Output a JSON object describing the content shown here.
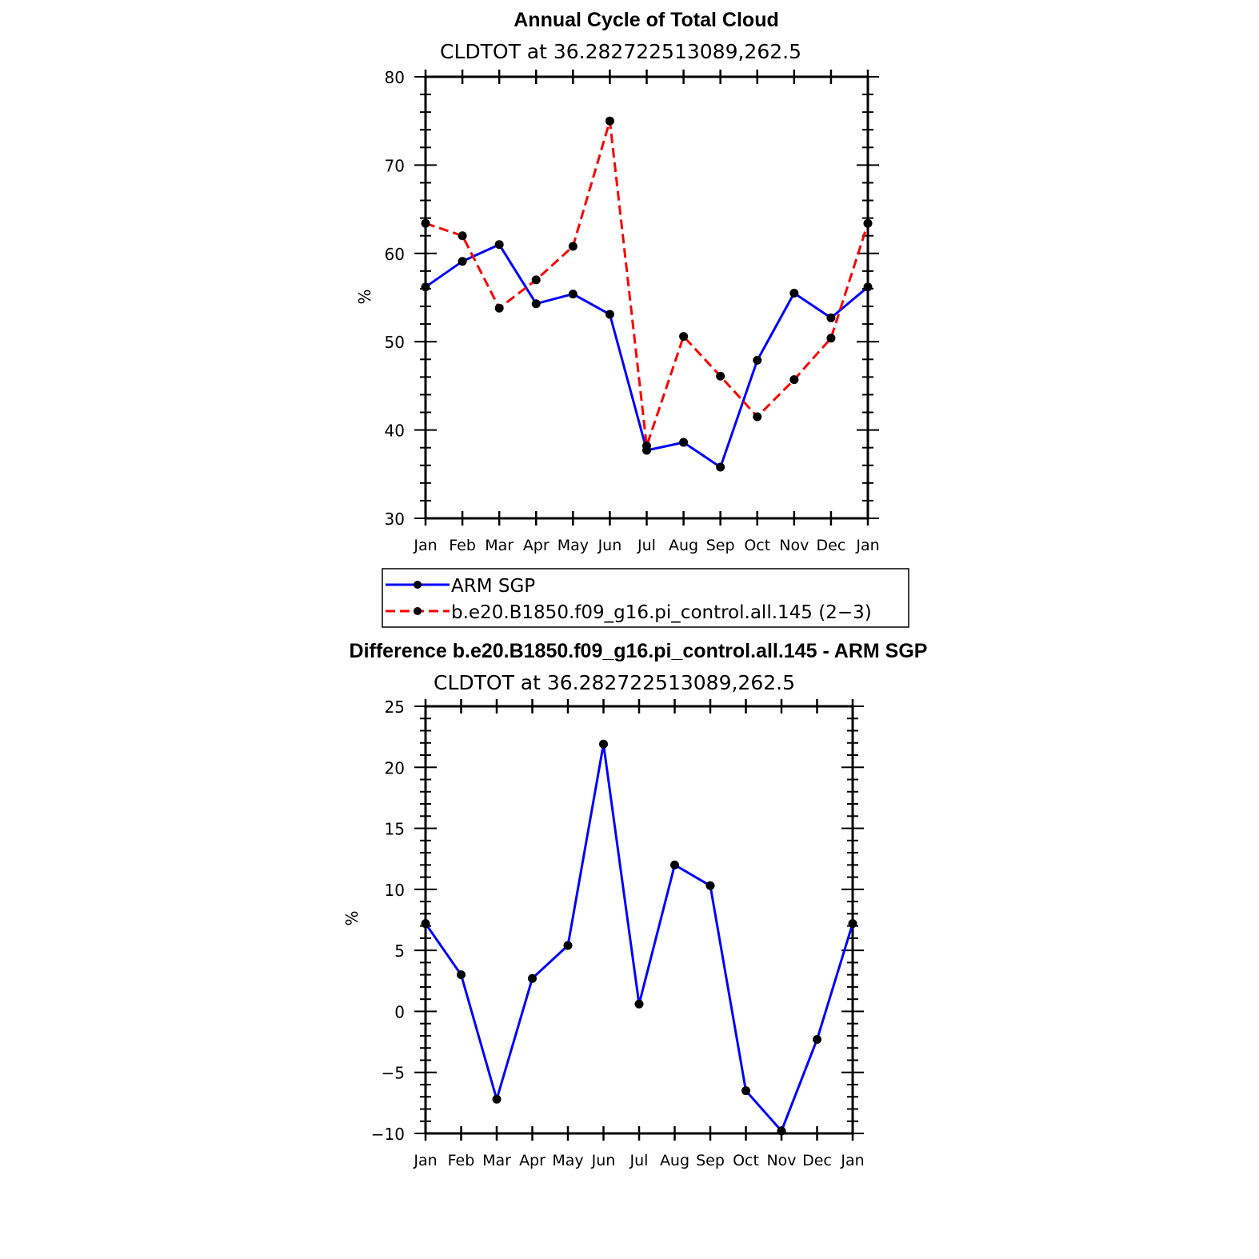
{
  "chart_data": [
    {
      "type": "line",
      "title": "Annual Cycle of Total Cloud",
      "subtitle": "CLDTOT at 36.282722513089,262.5",
      "xlabel": "",
      "ylabel": "%",
      "categories": [
        "Jan",
        "Feb",
        "Mar",
        "Apr",
        "May",
        "Jun",
        "Jul",
        "Aug",
        "Sep",
        "Oct",
        "Nov",
        "Dec",
        "Jan"
      ],
      "ylim": [
        30,
        80
      ],
      "yticks": [
        30,
        40,
        50,
        60,
        70,
        80
      ],
      "ytick_labels": [
        "30",
        "40",
        "50",
        "60",
        "70",
        "80"
      ],
      "legend": "below",
      "series": [
        {
          "name": "ARM SGP",
          "color": "#0000ff",
          "style": "solid",
          "values": [
            56.2,
            59.1,
            61.0,
            54.3,
            55.4,
            53.1,
            37.7,
            38.6,
            35.8,
            47.9,
            55.5,
            52.7,
            56.2
          ]
        },
        {
          "name": "b.e20.B1850.f09_g16.pi_control.all.145 (2−3)",
          "color": "#ff0000",
          "style": "dashed",
          "values": [
            63.4,
            62.0,
            53.8,
            57.0,
            60.8,
            75.0,
            38.2,
            50.6,
            46.1,
            41.5,
            45.7,
            50.4,
            63.4
          ]
        }
      ]
    },
    {
      "type": "line",
      "title": "Difference b.e20.B1850.f09_g16.pi_control.all.145 - ARM SGP",
      "subtitle": "CLDTOT at 36.282722513089,262.5",
      "xlabel": "",
      "ylabel": "%",
      "categories": [
        "Jan",
        "Feb",
        "Mar",
        "Apr",
        "May",
        "Jun",
        "Jul",
        "Aug",
        "Sep",
        "Oct",
        "Nov",
        "Dec",
        "Jan"
      ],
      "ylim": [
        -10,
        25
      ],
      "yticks": [
        -10,
        -5,
        0,
        5,
        10,
        15,
        20,
        25
      ],
      "ytick_labels": [
        "−10",
        "−5",
        "0",
        "5",
        "10",
        "15",
        "20",
        "25"
      ],
      "series": [
        {
          "name": "Difference",
          "color": "#0000ff",
          "style": "solid",
          "values": [
            7.2,
            3.0,
            -7.2,
            2.7,
            5.4,
            21.9,
            0.6,
            12.0,
            10.3,
            -6.5,
            -9.8,
            -2.3,
            7.2
          ]
        }
      ]
    }
  ]
}
